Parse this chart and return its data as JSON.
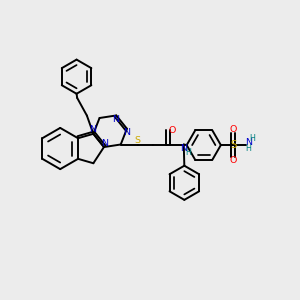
{
  "bg_color": "#ececec",
  "atom_colors": {
    "C": "#000000",
    "N": "#0000cc",
    "O": "#ff0000",
    "S": "#ccaa00",
    "H": "#008080"
  },
  "bond_color": "#000000",
  "figsize": [
    3.0,
    3.0
  ],
  "dpi": 100,
  "lw": 1.4,
  "fs": 6.8,
  "fs_small": 5.8
}
